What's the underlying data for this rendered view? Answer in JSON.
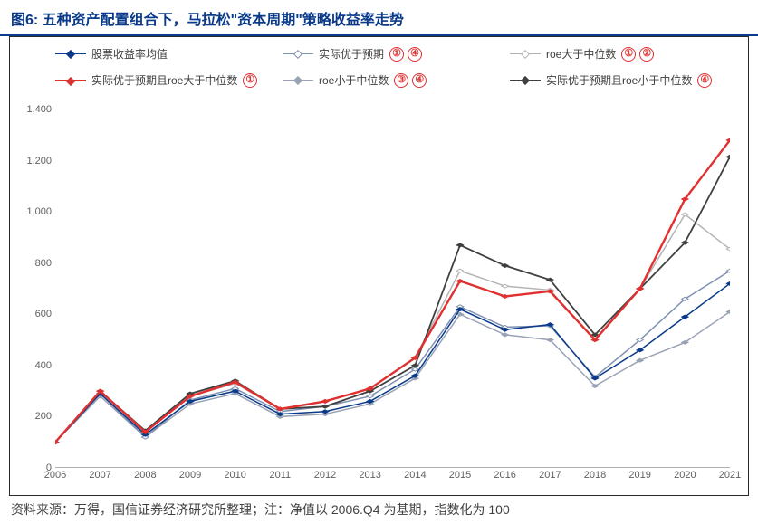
{
  "title": "图6: 五种资产配置组合下，马拉松\"资本周期\"策略收益率走势",
  "source": "资料来源：万得，国信证券经济研究所整理；注：净值以 2006.Q4 为基期，指数化为 100",
  "chart": {
    "type": "line",
    "background_color": "#ffffff",
    "frame_color": "#2a2a2a",
    "title_color": "#0a3a8a",
    "title_underline_color": "#0a3a8a",
    "badge_color": "#e03030",
    "x_categories": [
      "2006",
      "2007",
      "2008",
      "2009",
      "2010",
      "2011",
      "2012",
      "2013",
      "2014",
      "2015",
      "2016",
      "2017",
      "2018",
      "2019",
      "2020",
      "2021"
    ],
    "ylim": [
      0,
      1400
    ],
    "ytick_step": 200,
    "yticks": [
      0,
      200,
      400,
      600,
      800,
      1000,
      1200,
      1400
    ],
    "tick_fontsize": 11,
    "tick_color": "#606060",
    "marker_shape": "diamond",
    "marker_size": 7,
    "legend_fontsize": 12,
    "series": [
      {
        "id": "stock_mean",
        "label": "股票收益率均值",
        "color": "#0a3a8a",
        "width": 1.5,
        "marker_fill": "#0a3a8a",
        "marker_border": "#0a3a8a",
        "badges": [],
        "values": [
          100,
          290,
          130,
          260,
          300,
          210,
          220,
          260,
          360,
          620,
          540,
          560,
          350,
          460,
          590,
          720
        ]
      },
      {
        "id": "actual_better",
        "label": "实际优于预期",
        "color": "#7f90b0",
        "width": 1.5,
        "marker_fill": "#ffffff",
        "marker_border": "#7f90b0",
        "badges": [
          "①",
          "④"
        ],
        "values": [
          100,
          290,
          120,
          265,
          310,
          220,
          240,
          280,
          385,
          630,
          550,
          555,
          355,
          500,
          660,
          770
        ]
      },
      {
        "id": "roe_above",
        "label": "roe大于中位数",
        "color": "#b4b4b4",
        "width": 1.5,
        "marker_fill": "#ffffff",
        "marker_border": "#b4b4b4",
        "badges": [
          "①",
          "②"
        ],
        "values": [
          100,
          300,
          140,
          280,
          330,
          230,
          260,
          310,
          430,
          770,
          710,
          695,
          500,
          700,
          990,
          855
        ]
      },
      {
        "id": "actual_roe_above",
        "label": "实际优于预期且roe大于中位数",
        "color": "#e03030",
        "width": 2.4,
        "marker_fill": "#e03030",
        "marker_border": "#e03030",
        "badges": [
          "①"
        ],
        "values": [
          100,
          300,
          140,
          280,
          335,
          230,
          260,
          310,
          430,
          730,
          670,
          690,
          500,
          700,
          1050,
          1280
        ]
      },
      {
        "id": "roe_below",
        "label": "roe小于中位数",
        "color": "#9aa3b5",
        "width": 1.5,
        "marker_fill": "#9aa3b5",
        "marker_border": "#9aa3b5",
        "badges": [
          "③",
          "④"
        ],
        "values": [
          100,
          280,
          120,
          250,
          290,
          200,
          210,
          250,
          350,
          600,
          520,
          500,
          320,
          420,
          490,
          610
        ]
      },
      {
        "id": "actual_roe_below",
        "label": "实际优于预期且roe小于中位数",
        "color": "#404040",
        "width": 1.8,
        "marker_fill": "#404040",
        "marker_border": "#404040",
        "badges": [
          "④"
        ],
        "values": [
          100,
          300,
          145,
          290,
          340,
          230,
          240,
          300,
          400,
          870,
          790,
          735,
          520,
          700,
          880,
          1215
        ]
      }
    ]
  }
}
